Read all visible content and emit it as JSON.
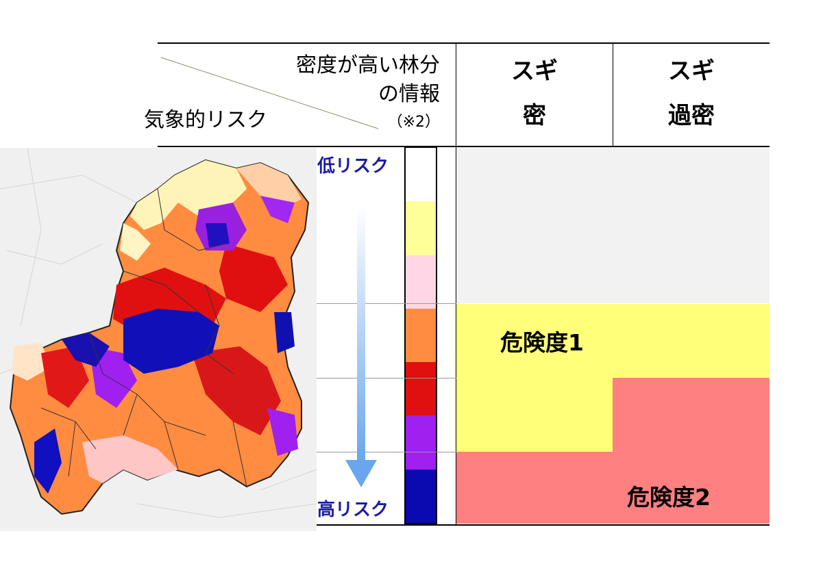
{
  "header": {
    "top_label_line1": "密度が高い林分",
    "top_label_line2": "の情報",
    "top_label_note": "（※2）",
    "left_label": "気象的リスク",
    "col1_line1": "スギ",
    "col1_line2": "密",
    "col2_line1": "スギ",
    "col2_line2": "過密"
  },
  "scale": {
    "low_label": "低リスク",
    "high_label": "高リスク",
    "colors": [
      "#ffffff",
      "#ffff99",
      "#ffd6e6",
      "#ff8c40",
      "#e01010",
      "#a020f0",
      "#0a0ab0"
    ]
  },
  "matrix": {
    "danger1": "危険度1",
    "danger2": "危険度2",
    "colors": {
      "none": "#f2f2f2",
      "level1": "#ffff7a",
      "level2": "#ff8080"
    }
  },
  "map": {
    "background_color": "#efefef"
  }
}
